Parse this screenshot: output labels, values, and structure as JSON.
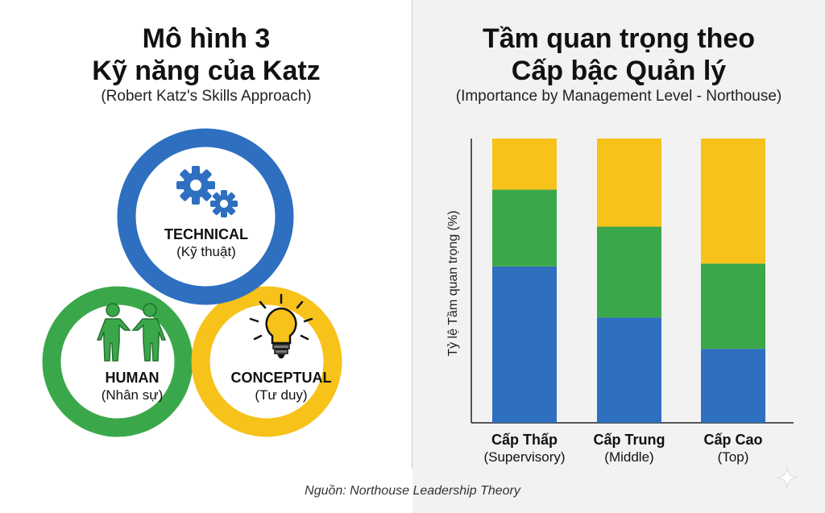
{
  "left": {
    "title_line1": "Mô hình 3",
    "title_line2": "Kỹ năng của Katz",
    "subtitle": "(Robert Katz's Skills Approach)",
    "circles": [
      {
        "main": "TECHNICAL",
        "sub": "(Kỹ thuật)",
        "color": "#2e6fc0",
        "icon": "gears-icon"
      },
      {
        "main": "HUMAN",
        "sub": "(Nhân sự)",
        "color": "#3aa84a",
        "icon": "handshake-icon"
      },
      {
        "main": "CONCEPTUAL",
        "sub": "(Tư duy)",
        "color": "#f7c21a",
        "icon": "lightbulb-icon"
      }
    ]
  },
  "right": {
    "title_line1": "Tầm quan trọng theo",
    "title_line2": "Cấp bậc Quản lý",
    "subtitle": "(Importance by Management Level - Northouse)"
  },
  "chart_data": {
    "type": "bar",
    "stacked": true,
    "title": "Tầm quan trọng theo Cấp bậc Quản lý",
    "subtitle": "(Importance by Management Level - Northouse)",
    "xlabel": "",
    "ylabel": "Tỷ lệ Tầm quan trọng (%)",
    "ylim": [
      0,
      100
    ],
    "grid": false,
    "categories": [
      "Cấp Thấp",
      "Cấp Trung",
      "Cấp Cao"
    ],
    "category_subtitles": [
      "(Supervisory)",
      "(Middle)",
      "(Top)"
    ],
    "series": [
      {
        "name": "Technical",
        "color": "#2e6fc0",
        "values": [
          55,
          37,
          26
        ]
      },
      {
        "name": "Human",
        "color": "#3aa84a",
        "values": [
          27,
          32,
          30
        ]
      },
      {
        "name": "Conceptual",
        "color": "#f7c21a",
        "values": [
          18,
          31,
          44
        ]
      }
    ]
  },
  "footer": {
    "source": "Nguồn: Northouse Leadership Theory"
  }
}
